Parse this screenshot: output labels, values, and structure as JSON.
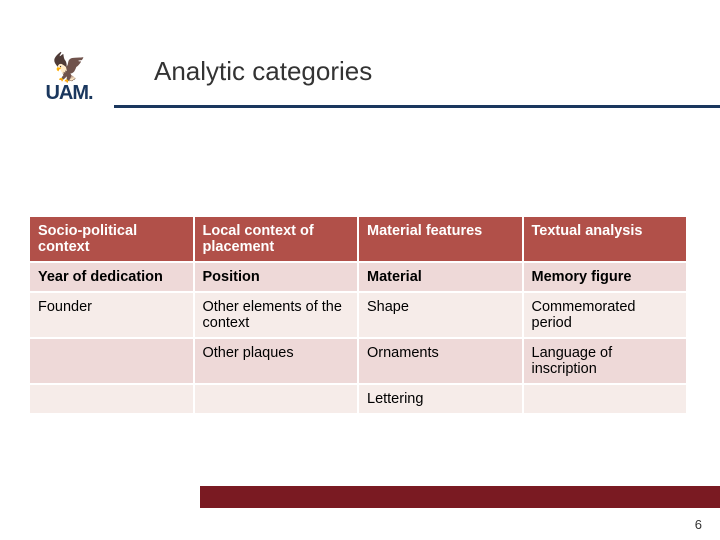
{
  "title": "Analytic categories",
  "logo": {
    "eagle_glyph": "🦅",
    "text": "UAM."
  },
  "table": {
    "columns": [
      "Socio-political context",
      "Local context of placement",
      "Material features",
      "Textual analysis"
    ],
    "rows": [
      [
        "Year of dedication",
        "Position",
        "Material",
        "Memory figure"
      ],
      [
        "Founder",
        "Other elements of the context",
        "Shape",
        "Commemorated period"
      ],
      [
        "",
        "Other plaques",
        "Ornaments",
        "Language of inscription"
      ],
      [
        "",
        "",
        "Lettering",
        ""
      ]
    ]
  },
  "page_number": "6",
  "colors": {
    "header_bg": "#b15049",
    "row_odd": "#eed9d8",
    "row_even": "#f6ece9",
    "footer_bar": "#7a1a22",
    "rule": "#1a375e",
    "logo": "#1a375e"
  }
}
